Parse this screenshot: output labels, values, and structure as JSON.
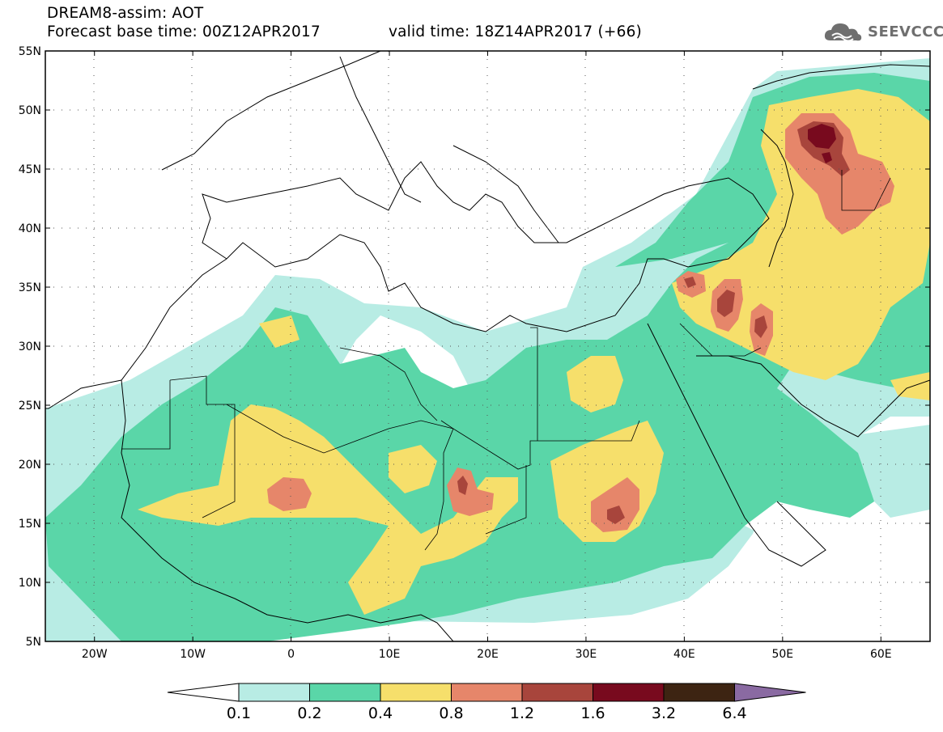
{
  "title": {
    "line1": "DREAM8-assim: AOT",
    "line2": "Forecast base time: 00Z12APR2017",
    "valid": "valid time: 18Z14APR2017 (+66)"
  },
  "logo": {
    "text": "SEEVCCC",
    "icon": "cloud-logo-icon"
  },
  "map": {
    "lon_range": [
      -25,
      65
    ],
    "lat_range": [
      5,
      55
    ],
    "lat_ticks": [
      {
        "value": 55,
        "label": "55N"
      },
      {
        "value": 50,
        "label": "50N"
      },
      {
        "value": 45,
        "label": "45N"
      },
      {
        "value": 40,
        "label": "40N"
      },
      {
        "value": 35,
        "label": "35N"
      },
      {
        "value": 30,
        "label": "30N"
      },
      {
        "value": 25,
        "label": "25N"
      },
      {
        "value": 20,
        "label": "20N"
      },
      {
        "value": 15,
        "label": "15N"
      },
      {
        "value": 10,
        "label": "10N"
      },
      {
        "value": 5,
        "label": "5N"
      }
    ],
    "lon_ticks": [
      {
        "value": -20,
        "label": "20W"
      },
      {
        "value": -10,
        "label": "10W"
      },
      {
        "value": 0,
        "label": "0"
      },
      {
        "value": 10,
        "label": "10E"
      },
      {
        "value": 20,
        "label": "20E"
      },
      {
        "value": 30,
        "label": "30E"
      },
      {
        "value": 40,
        "label": "40E"
      },
      {
        "value": 50,
        "label": "50E"
      },
      {
        "value": 60,
        "label": "60E"
      }
    ],
    "gridlines": "dotted"
  },
  "colorbar": {
    "labels": [
      "0.1",
      "0.2",
      "0.4",
      "0.8",
      "1.2",
      "1.6",
      "3.2",
      "6.4"
    ],
    "colors": [
      "#ffffff",
      "#b8ece4",
      "#5ad6a8",
      "#f6df6b",
      "#e6866a",
      "#a8453c",
      "#780a1e",
      "#3d2412",
      "#8a6aa2"
    ]
  }
}
